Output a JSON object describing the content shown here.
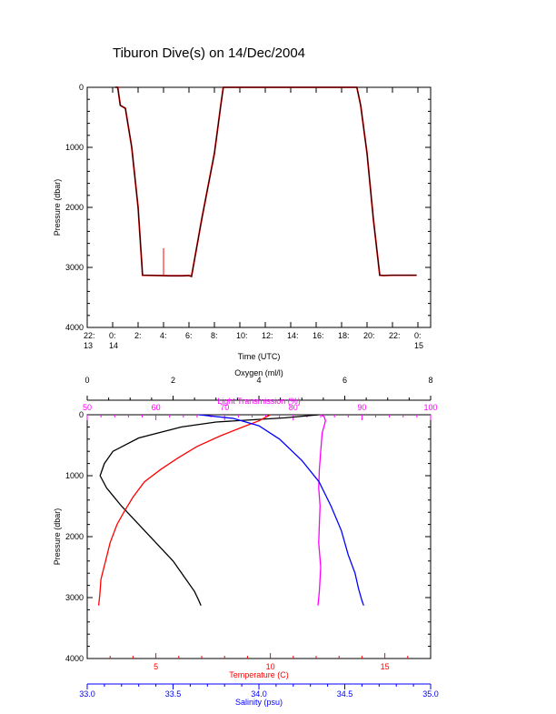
{
  "title": "Tiburon Dive(s) on 14/Dec/2004",
  "colors": {
    "axis": "#000000",
    "depth_trace": "#000000",
    "depth_highlight": "#ff0000",
    "oxygen": "#000000",
    "light": "#ff00ff",
    "temperature": "#ff0000",
    "salinity": "#0000ff"
  },
  "chart_data": [
    {
      "type": "line",
      "name": "dive-depth-vs-time",
      "xlabel": "Time (UTC)",
      "ylabel": "Pressure (dbar)",
      "xlim": [
        22,
        49
      ],
      "ylim": [
        4000,
        0
      ],
      "y_reversed": true,
      "y_ticks": [
        "0",
        "1000",
        "2000",
        "3000",
        "4000"
      ],
      "x_ticks": [
        {
          "value": 22,
          "line1": "22:",
          "line2": "13"
        },
        {
          "value": 24,
          "line1": "0:",
          "line2": "14"
        },
        {
          "value": 26,
          "line1": "2:",
          "line2": ""
        },
        {
          "value": 28,
          "line1": "4:",
          "line2": ""
        },
        {
          "value": 30,
          "line1": "6:",
          "line2": ""
        },
        {
          "value": 32,
          "line1": "8:",
          "line2": ""
        },
        {
          "value": 34,
          "line1": "10:",
          "line2": ""
        },
        {
          "value": 36,
          "line1": "12:",
          "line2": ""
        },
        {
          "value": 38,
          "line1": "14:",
          "line2": ""
        },
        {
          "value": 40,
          "line1": "16:",
          "line2": ""
        },
        {
          "value": 42,
          "line1": "18:",
          "line2": ""
        },
        {
          "value": 44,
          "line1": "20:",
          "line2": ""
        },
        {
          "value": 46,
          "line1": "22:",
          "line2": ""
        },
        {
          "value": 48,
          "line1": "0:",
          "line2": "15"
        }
      ],
      "series": [
        {
          "x": [
            24.2,
            24.4,
            24.6,
            25.0,
            25.5,
            26.0,
            26.35,
            27.5,
            28.5,
            29.5,
            30.0,
            30.2,
            31.0,
            32.0,
            32.5,
            32.7,
            33.5,
            36.0,
            39.0,
            42.0,
            43.2,
            43.5,
            44.0,
            44.5,
            45.0,
            45.3,
            46.0,
            47.0,
            47.9
          ],
          "y": [
            0,
            0,
            300,
            350,
            1000,
            2000,
            3130,
            3135,
            3140,
            3140,
            3135,
            3150,
            2200,
            1100,
            300,
            0,
            0,
            0,
            0,
            0,
            0,
            300,
            1100,
            2200,
            3130,
            3135,
            3130,
            3130,
            3130
          ]
        }
      ],
      "spike": {
        "x": 28.0,
        "y_from": 3130,
        "y_to": 2680
      }
    },
    {
      "type": "line",
      "name": "ctd-profiles",
      "ylabel": "Pressure (dbar)",
      "ylim": [
        4000,
        0
      ],
      "y_reversed": true,
      "y_ticks": [
        "0",
        "1000",
        "2000",
        "3000",
        "4000"
      ],
      "axes": {
        "oxygen": {
          "label": "Oxygen (ml/l)",
          "range": [
            0,
            8
          ],
          "ticks": [
            0,
            2,
            4,
            6,
            8
          ]
        },
        "light": {
          "label": "Light Transmission (%)",
          "range": [
            50,
            100
          ],
          "ticks": [
            50,
            60,
            70,
            80,
            90,
            100
          ]
        },
        "temperature": {
          "label": "Temperature (C)",
          "range": [
            2,
            17
          ],
          "ticks": [
            5,
            10,
            15
          ]
        },
        "salinity": {
          "label": "Salinity (psu)",
          "range": [
            33.0,
            35.0
          ],
          "ticks": [
            "33.0",
            "33.5",
            "34.0",
            "34.5",
            "35.0"
          ]
        }
      },
      "series": [
        {
          "name": "Oxygen",
          "axis": "oxygen",
          "x": [
            5.4,
            4.6,
            3.0,
            2.2,
            1.2,
            0.6,
            0.4,
            0.3,
            0.45,
            0.8,
            1.2,
            1.6,
            2.0,
            2.3,
            2.5,
            2.6,
            2.65
          ],
          "y": [
            0,
            50,
            120,
            200,
            380,
            600,
            800,
            1000,
            1200,
            1500,
            1800,
            2100,
            2400,
            2700,
            2900,
            3050,
            3130
          ]
        },
        {
          "name": "Light Transmission",
          "axis": "light",
          "x": [
            84.0,
            84.5,
            84.7,
            84.2,
            84.0,
            83.8,
            83.7,
            83.9,
            83.8,
            83.7,
            84.0,
            83.8,
            83.6
          ],
          "y": [
            0,
            30,
            100,
            300,
            600,
            900,
            1200,
            1500,
            1800,
            2100,
            2500,
            2900,
            3130
          ]
        },
        {
          "name": "Temperature",
          "axis": "temperature",
          "x": [
            10.0,
            9.5,
            8.8,
            7.8,
            6.8,
            6.0,
            5.2,
            4.5,
            4.0,
            3.6,
            3.3,
            3.0,
            2.8,
            2.6,
            2.55,
            2.5
          ],
          "y": [
            0,
            100,
            200,
            350,
            520,
            700,
            900,
            1100,
            1350,
            1600,
            1800,
            2100,
            2400,
            2700,
            2950,
            3130
          ]
        },
        {
          "name": "Salinity",
          "axis": "salinity",
          "x": [
            33.65,
            33.85,
            34.0,
            34.12,
            34.25,
            34.35,
            34.42,
            34.48,
            34.52,
            34.56,
            34.58,
            34.6,
            34.61
          ],
          "y": [
            0,
            60,
            180,
            400,
            750,
            1100,
            1500,
            1900,
            2300,
            2600,
            2850,
            3050,
            3130
          ]
        }
      ]
    }
  ]
}
